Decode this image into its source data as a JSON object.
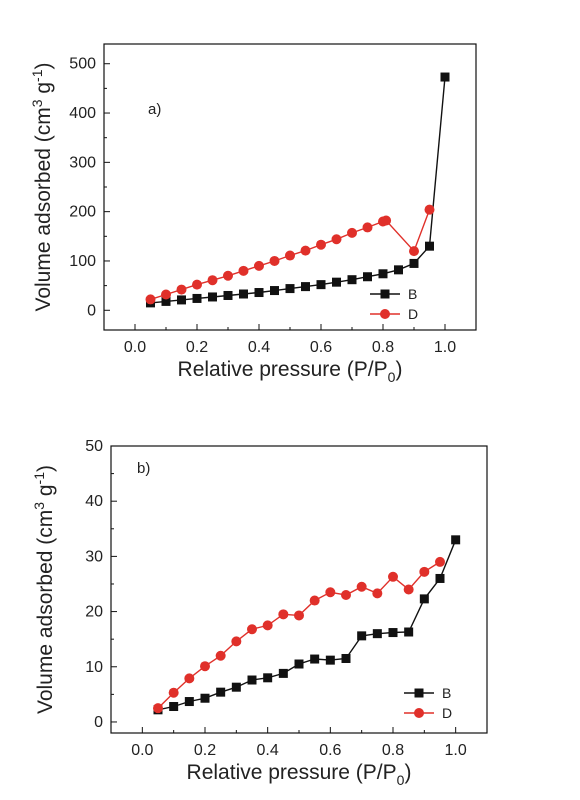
{
  "chart_data": [
    {
      "type": "line",
      "panel_label": "a)",
      "xlabel": "Relative pressure (P/P",
      "xlabel_sub": "0",
      "xlabel_end": ")",
      "ylabel": "Volume adsorbed (cm",
      "ylabel_sup1": "3",
      "ylabel_mid": " g",
      "ylabel_sup2": "-1",
      "ylabel_end": ")",
      "xlim": [
        -0.1,
        1.1
      ],
      "ylim": [
        -40,
        540
      ],
      "xticks": [
        0.0,
        0.2,
        0.4,
        0.6,
        0.8,
        1.0
      ],
      "xtick_labels": [
        "0.0",
        "0.2",
        "0.4",
        "0.6",
        "0.8",
        "1.0"
      ],
      "yticks": [
        0,
        100,
        200,
        300,
        400,
        500
      ],
      "ytick_labels": [
        "0",
        "100",
        "200",
        "300",
        "400",
        "500"
      ],
      "legend_position": "bottom-right",
      "series": [
        {
          "name": "B",
          "marker": "square",
          "color": "#111111",
          "x": [
            0.05,
            0.1,
            0.15,
            0.2,
            0.25,
            0.3,
            0.35,
            0.4,
            0.45,
            0.5,
            0.55,
            0.6,
            0.65,
            0.7,
            0.75,
            0.8,
            0.85,
            0.9,
            0.95,
            1.0
          ],
          "y": [
            15,
            18,
            21,
            24,
            27,
            30,
            33,
            36,
            40,
            44,
            48,
            52,
            57,
            62,
            68,
            74,
            82,
            95,
            130,
            473
          ]
        },
        {
          "name": "D",
          "marker": "circle",
          "color": "#e0302a",
          "x": [
            0.05,
            0.1,
            0.15,
            0.2,
            0.25,
            0.3,
            0.35,
            0.4,
            0.45,
            0.5,
            0.55,
            0.6,
            0.65,
            0.7,
            0.75,
            0.8,
            0.81,
            0.9,
            0.95
          ],
          "y": [
            22,
            32,
            42,
            52,
            61,
            70,
            80,
            90,
            100,
            111,
            121,
            133,
            144,
            157,
            168,
            180,
            182,
            120,
            204
          ]
        }
      ]
    },
    {
      "type": "line",
      "panel_label": "b)",
      "xlabel": "Relative pressure (P/P",
      "xlabel_sub": "0",
      "xlabel_end": ")",
      "ylabel": "Volume adsorbed (cm",
      "ylabel_sup1": "3",
      "ylabel_mid": " g",
      "ylabel_sup2": "-1",
      "ylabel_end": ")",
      "xlim": [
        -0.1,
        1.1
      ],
      "ylim": [
        -2,
        50
      ],
      "xticks": [
        0.0,
        0.2,
        0.4,
        0.6,
        0.8,
        1.0
      ],
      "xtick_labels": [
        "0.0",
        "0.2",
        "0.4",
        "0.6",
        "0.8",
        "1.0"
      ],
      "yticks": [
        0,
        10,
        20,
        30,
        40,
        50
      ],
      "ytick_labels": [
        "0",
        "10",
        "20",
        "30",
        "40",
        "50"
      ],
      "legend_position": "bottom-right",
      "series": [
        {
          "name": "B",
          "marker": "square",
          "color": "#111111",
          "x": [
            0.05,
            0.1,
            0.15,
            0.2,
            0.25,
            0.3,
            0.35,
            0.4,
            0.45,
            0.5,
            0.55,
            0.6,
            0.65,
            0.7,
            0.75,
            0.8,
            0.85,
            0.9,
            0.95,
            1.0
          ],
          "y": [
            2.2,
            2.8,
            3.7,
            4.3,
            5.4,
            6.3,
            7.6,
            8.0,
            8.8,
            10.5,
            11.4,
            11.2,
            11.5,
            15.6,
            16.0,
            16.2,
            16.3,
            22.3,
            26.0,
            33.0
          ]
        },
        {
          "name": "D",
          "marker": "circle",
          "color": "#e0302a",
          "x": [
            0.05,
            0.1,
            0.15,
            0.2,
            0.25,
            0.3,
            0.35,
            0.4,
            0.45,
            0.5,
            0.55,
            0.6,
            0.65,
            0.7,
            0.75,
            0.8,
            0.85,
            0.9,
            0.95
          ],
          "y": [
            2.5,
            5.3,
            7.9,
            10.1,
            12.0,
            14.6,
            16.8,
            17.5,
            19.5,
            19.3,
            22.0,
            23.5,
            23.0,
            24.5,
            23.3,
            26.3,
            24.0,
            27.2,
            29.0
          ]
        }
      ]
    }
  ]
}
